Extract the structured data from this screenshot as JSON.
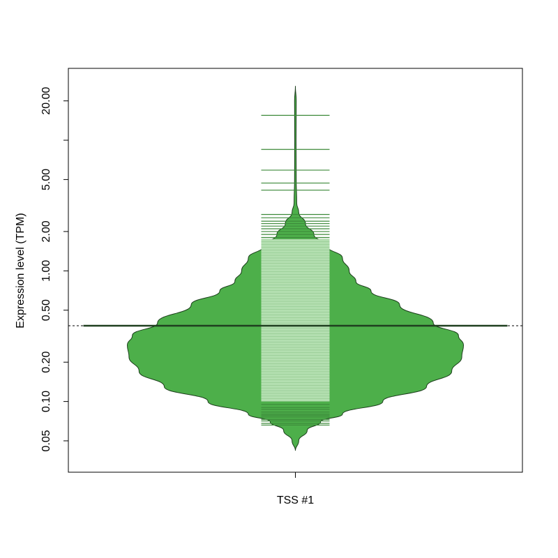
{
  "chart_data": {
    "type": "beanplot",
    "title": "",
    "xlabel": "",
    "ylabel": "Expression level (TPM)",
    "y_scale": "log",
    "ylim": [
      0.035,
      30
    ],
    "y_ticks": [
      {
        "value": 0.05,
        "label": "0.05"
      },
      {
        "value": 0.1,
        "label": "0.10"
      },
      {
        "value": 0.2,
        "label": "0.20"
      },
      {
        "value": 0.5,
        "label": "0.50"
      },
      {
        "value": 1,
        "label": "1.00"
      },
      {
        "value": 2,
        "label": "2.00"
      },
      {
        "value": 5,
        "label": "5.00"
      },
      {
        "value": 10,
        "label": ""
      },
      {
        "value": 20,
        "label": "20.00"
      }
    ],
    "categories": [
      "TSS #1"
    ],
    "colors": {
      "bean_fill": "#4daf4a",
      "bean_outline": "#1a3d1a",
      "rug_fill": "#b3dfb0",
      "rug_line": "#3d8a3a",
      "average_line": "#1f3f1f"
    },
    "beans": [
      {
        "name": "TSS #1",
        "average": 0.38,
        "overall_average": 0.38,
        "y_range": [
          0.042,
          26
        ],
        "density": [
          {
            "y": 0.042,
            "w": 0.0
          },
          {
            "y": 0.05,
            "w": 0.02
          },
          {
            "y": 0.06,
            "w": 0.07
          },
          {
            "y": 0.07,
            "w": 0.15
          },
          {
            "y": 0.08,
            "w": 0.28
          },
          {
            "y": 0.1,
            "w": 0.52
          },
          {
            "y": 0.13,
            "w": 0.78
          },
          {
            "y": 0.17,
            "w": 0.93
          },
          {
            "y": 0.22,
            "w": 0.99
          },
          {
            "y": 0.27,
            "w": 1.0
          },
          {
            "y": 0.32,
            "w": 0.97
          },
          {
            "y": 0.4,
            "w": 0.82
          },
          {
            "y": 0.55,
            "w": 0.62
          },
          {
            "y": 0.7,
            "w": 0.45
          },
          {
            "y": 0.83,
            "w": 0.36
          },
          {
            "y": 1.0,
            "w": 0.32
          },
          {
            "y": 1.25,
            "w": 0.28
          },
          {
            "y": 1.55,
            "w": 0.19
          },
          {
            "y": 1.9,
            "w": 0.11
          },
          {
            "y": 2.3,
            "w": 0.06
          },
          {
            "y": 2.8,
            "w": 0.02
          },
          {
            "y": 3.3,
            "w": 0.008
          },
          {
            "y": 5.0,
            "w": 0.005
          },
          {
            "y": 10.0,
            "w": 0.004
          },
          {
            "y": 20.0,
            "w": 0.005
          },
          {
            "y": 26.0,
            "w": 0.0
          }
        ],
        "observations_sparse": [
          15.5,
          8.5,
          5.9,
          4.7,
          4.15,
          2.7,
          2.55,
          2.4,
          2.3,
          2.2,
          2.1,
          2.0,
          1.9,
          1.8,
          0.095,
          0.09,
          0.087,
          0.083,
          0.08,
          0.078,
          0.076,
          0.073,
          0.071,
          0.068,
          0.066
        ],
        "observations_dense_range": [
          0.1,
          1.75
        ]
      }
    ]
  }
}
